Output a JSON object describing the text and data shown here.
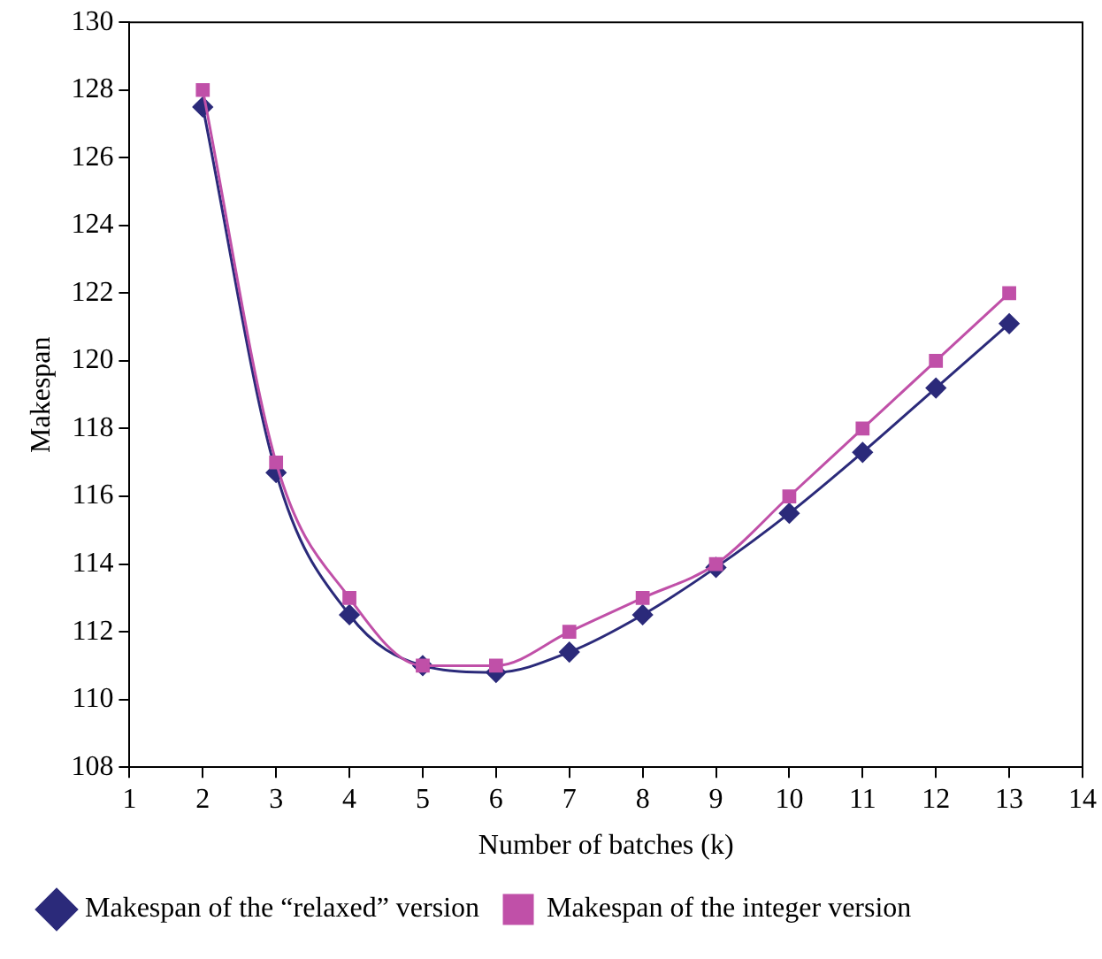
{
  "chart_data": {
    "type": "line",
    "xlabel": "Number of batches (k)",
    "ylabel": "Makespan",
    "x": [
      2,
      3,
      4,
      5,
      6,
      7,
      8,
      9,
      10,
      11,
      12,
      13
    ],
    "series": [
      {
        "name": "Makespan of the “relaxed” version",
        "color": "#2b2a7a",
        "marker": "diamond",
        "values": [
          127.5,
          116.7,
          112.5,
          111.0,
          110.8,
          111.4,
          112.5,
          113.9,
          115.5,
          117.3,
          119.2,
          121.1
        ]
      },
      {
        "name": "Makespan of the integer version",
        "color": "#c050a8",
        "marker": "square",
        "values": [
          128.0,
          117.0,
          113.0,
          111.0,
          111.0,
          112.0,
          113.0,
          114.0,
          116.0,
          118.0,
          120.0,
          122.0
        ]
      }
    ],
    "xlim": [
      1,
      14
    ],
    "xticks": [
      1,
      2,
      3,
      4,
      5,
      6,
      7,
      8,
      9,
      10,
      11,
      12,
      13,
      14
    ],
    "ylim": [
      108,
      130
    ],
    "yticks": [
      108,
      110,
      112,
      114,
      116,
      118,
      120,
      122,
      124,
      126,
      128,
      130
    ],
    "grid": false,
    "legend": "bottom",
    "line_style": "solid"
  }
}
